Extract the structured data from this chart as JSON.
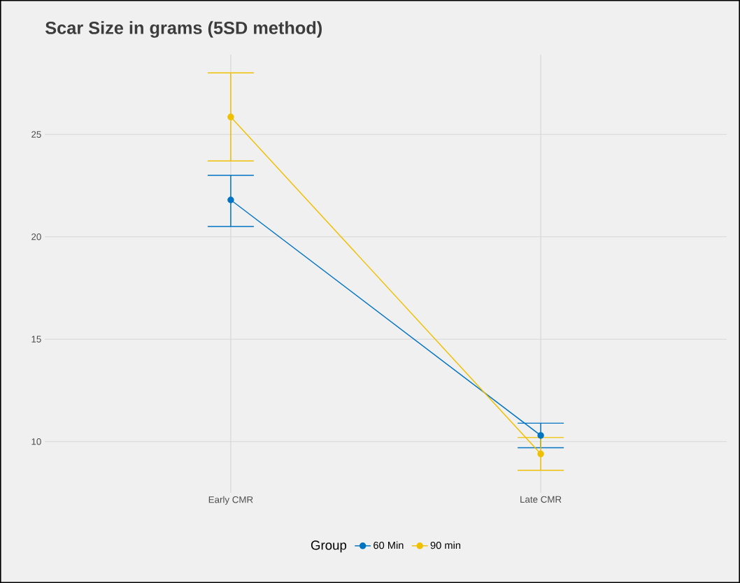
{
  "chart_data": {
    "type": "line",
    "title": "Scar Size in grams (5SD method)",
    "categories": [
      "Early CMR",
      "Late CMR"
    ],
    "series": [
      {
        "name": "60 Min",
        "color": "#0073c2",
        "values": [
          21.8,
          10.3
        ],
        "errors": [
          [
            20.5,
            23.0
          ],
          [
            9.7,
            10.9
          ]
        ]
      },
      {
        "name": "90 min",
        "color": "#efc000",
        "values": [
          25.85,
          9.4
        ],
        "errors": [
          [
            23.7,
            28.0
          ],
          [
            8.6,
            10.2
          ]
        ]
      }
    ],
    "legend_title": "Group",
    "legend": "bottom",
    "ylim": [
      7.5,
      28.9
    ],
    "yticks": [
      10,
      15,
      20,
      25
    ],
    "grid": true,
    "marker": "circle",
    "line_style": "solid"
  }
}
